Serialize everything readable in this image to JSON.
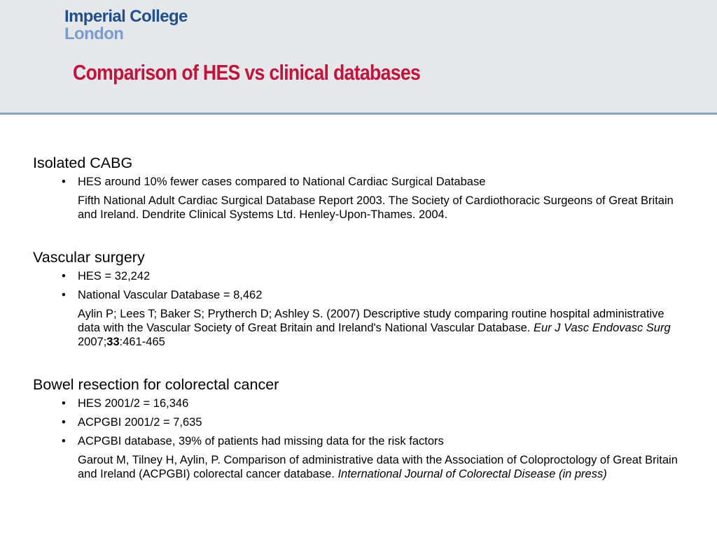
{
  "header": {
    "logo_line1": "Imperial College",
    "logo_line2": "London",
    "title": "Comparison of HES vs clinical databases"
  },
  "sections": [
    {
      "heading": "Isolated CABG",
      "bullets": [
        "HES around 10% fewer cases compared to National Cardiac Surgical Database"
      ],
      "reference": {
        "text": "Fifth National Adult Cardiac Surgical Database Report 2003. The Society of Cardiothoracic Surgeons of Great Britain and Ireland. Dendrite Clinical Systems Ltd. Henley-Upon-Thames. 2004."
      }
    },
    {
      "heading": "Vascular surgery",
      "bullets": [
        "HES = 32,242",
        "National Vascular Database = 8,462"
      ],
      "reference": {
        "text": "Aylin P; Lees T; Baker S; Prytherch D; Ashley S. (2007) Descriptive study comparing routine hospital administrative data with the Vascular Society of Great Britain and Ireland's National Vascular Database.",
        "journal": "Eur J Vasc Endovasc Surg",
        "year": "2007;",
        "volume": "33",
        "pages": ":461-465"
      }
    },
    {
      "heading": "Bowel resection for colorectal cancer",
      "bullets": [
        "HES 2001/2 = 16,346",
        "ACPGBI 2001/2 = 7,635",
        "ACPGBI database, 39% of patients had missing data for the risk factors"
      ],
      "reference": {
        "text": "Garout M, Tilney H, Aylin, P. Comparison of administrative data with the Association of Coloproctology of Great Britain and Ireland (ACPGBI) colorectal cancer database.",
        "journal": "International Journal of Colorectal Disease (in press)"
      }
    }
  ],
  "bullet_glyph": "•"
}
